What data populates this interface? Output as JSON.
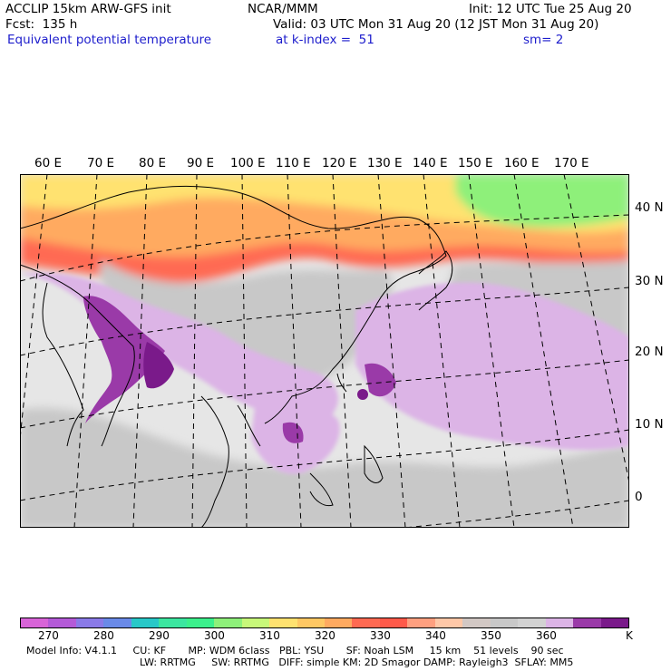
{
  "header": {
    "model_title": "ACCLIP 15km ARW-GFS init",
    "org": "NCAR/MMM",
    "init": "Init: 12 UTC Tue 25 Aug 20",
    "forecast": "Fcst:  135 h",
    "valid": "Valid: 03 UTC Mon 31 Aug 20 (12 JST Mon 31 Aug 20)",
    "field": "Equivalent potential temperature",
    "level": "at k-index =  51",
    "smoothing": "sm= 2"
  },
  "map": {
    "lon_labels": [
      "60 E",
      "70 E",
      "80 E",
      "90 E",
      "100 E",
      "110 E",
      "120 E",
      "130 E",
      "140 E",
      "150 E",
      "160 E",
      "170 E"
    ],
    "lat_labels": [
      "40 N",
      "30 N",
      "20 N",
      "10 N",
      "0"
    ],
    "colors": {
      "border": "#000000",
      "grid": "#000000",
      "warm_band": "#ff6a52",
      "hot": "#ff5a4a",
      "orange": "#ffaa60",
      "yellow": "#ffe270",
      "green": "#8ef07a",
      "grey": "#c8c8c8",
      "lightgrey": "#e6e6e6",
      "lavender": "#dcb4e6",
      "purple": "#9a3aa8",
      "darkpurple": "#7a1a8a"
    }
  },
  "colorbar": {
    "colors": [
      "#d864d8",
      "#b45ad8",
      "#8a7ae8",
      "#6a8ae8",
      "#28c8c8",
      "#3ce6a0",
      "#3cf08c",
      "#8ef07a",
      "#c8f87a",
      "#ffe270",
      "#ffc864",
      "#ffaa60",
      "#ff6a52",
      "#ff5a4a",
      "#ffa080",
      "#ffc8a8",
      "#d2c8c4",
      "#c8c8c8",
      "#d2d2d2",
      "#dcb4e6",
      "#9a3aa8",
      "#7a1a8a"
    ],
    "labels": [
      "270",
      "280",
      "290",
      "300",
      "310",
      "320",
      "330",
      "340",
      "350",
      "360",
      "K"
    ]
  },
  "model_info": {
    "line1": "Model Info: V4.1.1     CU: KF       MP: WDM 6class   PBL: YSU       SF: Noah LSM     15 km    51 levels    90 sec",
    "line2": "LW: RRTMG     SW: RRTMG   DIFF: simple KM: 2D Smagor DAMP: Rayleigh3  SFLAY: MM5"
  }
}
